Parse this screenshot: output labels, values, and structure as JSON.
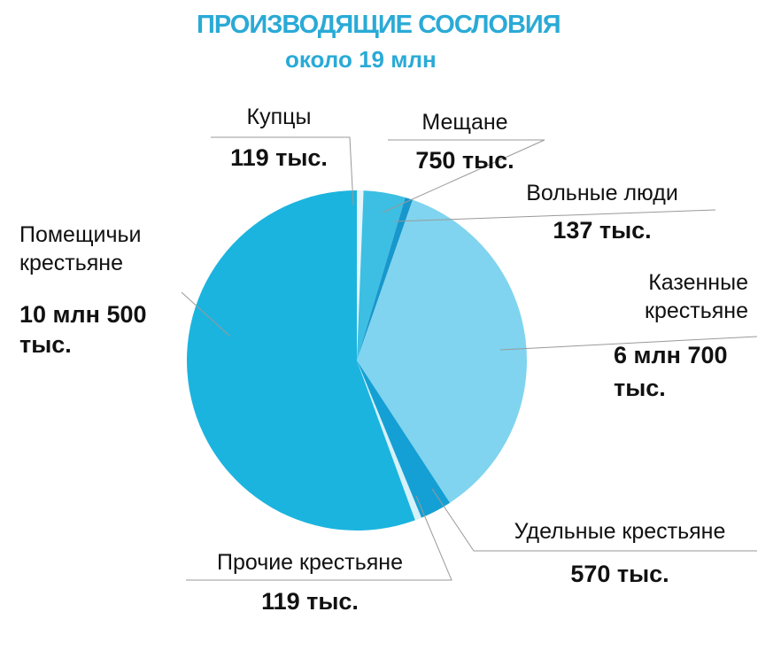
{
  "chart_data": {
    "type": "pie",
    "title": "ПРОИЗВОДЯЩИЕ СОСЛОВИЯ",
    "subtitle": "около 19 млн",
    "categories": [
      "Купцы",
      "Мещане",
      "Вольные люди",
      "Казенные крестьяне",
      "Удельные крестьяне",
      "Прочие крестьяне",
      "Помещичьи крестьяне"
    ],
    "values": [
      119,
      750,
      137,
      6700,
      570,
      119,
      10500
    ],
    "value_labels": [
      "119 тыс.",
      "750 тыс.",
      "137 тыс.",
      "6 млн 700 тыс.",
      "570 тыс.",
      "119 тыс.",
      "10 млн 500 тыс."
    ],
    "colors": [
      "#e4f5fb",
      "#3dbfe3",
      "#1797cc",
      "#80d4ef",
      "#14a0d4",
      "#d6f1f9",
      "#1bb4df"
    ]
  }
}
